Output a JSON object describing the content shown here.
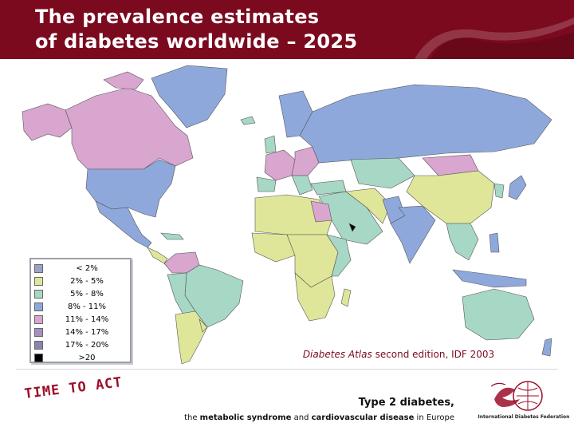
{
  "header": {
    "title_line1": "The prevalence estimates",
    "title_line2": "of diabetes worldwide – 2025"
  },
  "legend": {
    "items": [
      {
        "label": "< 2%",
        "color": "#9ba3c4"
      },
      {
        "label": "2% - 5%",
        "color": "#dfe69a"
      },
      {
        "label": "5% - 8%",
        "color": "#a7d7c5"
      },
      {
        "label": "8% - 11%",
        "color": "#8fa8dc"
      },
      {
        "label": "11% - 14%",
        "color": "#d9a6d0"
      },
      {
        "label": "14% - 17%",
        "color": "#a78fc0"
      },
      {
        "label": "17% - 20%",
        "color": "#8d83b0"
      },
      {
        "label": ">20",
        "color": "#000000"
      }
    ]
  },
  "source": {
    "italic": "Diabetes Atlas",
    "rest": " second edition, IDF 2003"
  },
  "footer": {
    "campaign": "TIME TO ACT",
    "main": "Type 2 diabetes,",
    "sub_pre": "the ",
    "sub_b1": "metabolic syndrome",
    "sub_mid": " and ",
    "sub_b2": "cardiovascular disease",
    "sub_post": " in Europe",
    "logo_text": "International Diabetes Federation"
  },
  "colors": {
    "brand": "#7b0a1f",
    "ocean": "#ffffff",
    "border": "#555555"
  }
}
